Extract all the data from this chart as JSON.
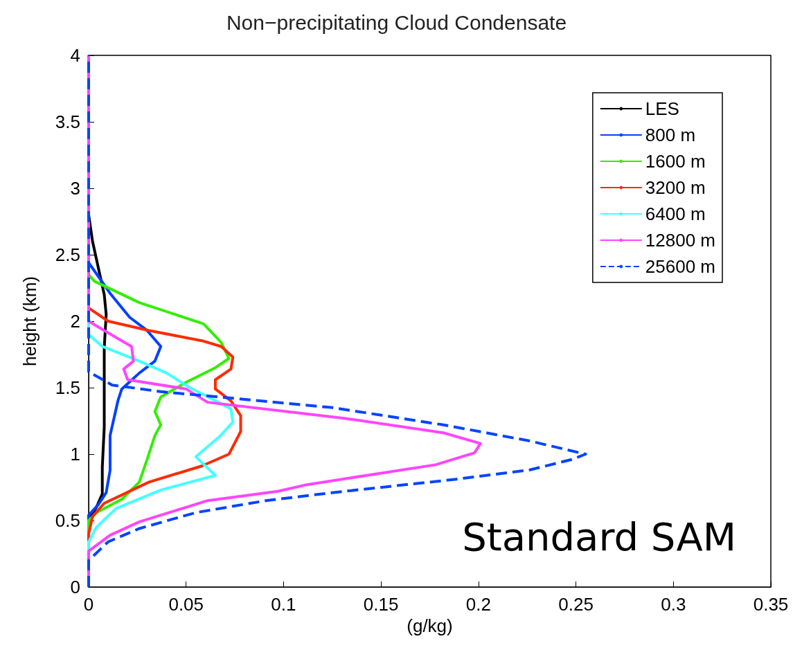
{
  "chart_data": {
    "type": "line",
    "title": "Non−precipitating Cloud Condensate",
    "xlabel": "(g/kg)",
    "ylabel": "height (km)",
    "xlim": [
      0,
      0.35
    ],
    "xticks": [
      0,
      0.05,
      0.1,
      0.15,
      0.2,
      0.25,
      0.3,
      0.35
    ],
    "ylim": [
      0,
      4
    ],
    "yticks": [
      0,
      0.5,
      1,
      1.5,
      2,
      2.5,
      3,
      3.5,
      4
    ],
    "grid": false,
    "legend": "top right",
    "marker": "none",
    "annotations": [
      "Standard SAM"
    ],
    "series": [
      {
        "name": "LES",
        "color": "#000000",
        "x": [
          0,
          0,
          0.004,
          0.007,
          0.007,
          0.008,
          0.008,
          0.008,
          0.009,
          0.008,
          0.005,
          0.002,
          0,
          0
        ],
        "values": [
          0,
          0.5,
          0.6,
          0.7,
          0.9,
          1.2,
          1.5,
          1.8,
          2.05,
          2.2,
          2.4,
          2.6,
          2.8,
          4
        ]
      },
      {
        "name": "800 m",
        "color": "#0040ff",
        "x": [
          0,
          0,
          0.005,
          0.009,
          0.011,
          0.011,
          0.015,
          0.017,
          0.026,
          0.034,
          0.037,
          0.03,
          0.021,
          0.011,
          0,
          0
        ],
        "values": [
          0,
          0.54,
          0.62,
          0.71,
          0.88,
          1.14,
          1.4,
          1.49,
          1.61,
          1.7,
          1.81,
          1.93,
          2.03,
          2.21,
          2.44,
          4
        ]
      },
      {
        "name": "1600 m",
        "color": "#33ee00",
        "x": [
          0,
          0,
          0.004,
          0.017,
          0.026,
          0.03,
          0.034,
          0.037,
          0.034,
          0.037,
          0.05,
          0.065,
          0.072,
          0.068,
          0.059,
          0.026,
          0.003,
          0,
          0
        ],
        "values": [
          0,
          0.5,
          0.56,
          0.66,
          0.79,
          0.96,
          1.14,
          1.22,
          1.32,
          1.43,
          1.54,
          1.65,
          1.72,
          1.84,
          1.98,
          2.14,
          2.3,
          2.35,
          4
        ]
      },
      {
        "name": "3200 m",
        "color": "#ff2a00",
        "x": [
          0,
          0,
          0.002,
          0.008,
          0.031,
          0.058,
          0.072,
          0.078,
          0.078,
          0.073,
          0.065,
          0.065,
          0.073,
          0.074,
          0.068,
          0.059,
          0.031,
          0.01,
          0,
          0
        ],
        "values": [
          0,
          0.4,
          0.53,
          0.63,
          0.79,
          0.91,
          1.0,
          1.17,
          1.29,
          1.4,
          1.49,
          1.56,
          1.64,
          1.73,
          1.81,
          1.85,
          1.93,
          2.0,
          2.1,
          4
        ]
      },
      {
        "name": "6400 m",
        "color": "#44ffff",
        "x": [
          0,
          0,
          0.004,
          0.014,
          0.037,
          0.065,
          0.055,
          0.067,
          0.074,
          0.073,
          0.064,
          0.052,
          0.04,
          0.026,
          0.007,
          0,
          0
        ],
        "values": [
          0,
          0.34,
          0.45,
          0.59,
          0.73,
          0.84,
          0.98,
          1.13,
          1.24,
          1.34,
          1.41,
          1.5,
          1.61,
          1.7,
          1.81,
          1.9,
          4
        ]
      },
      {
        "name": "12800 m",
        "color": "#ff44ff",
        "x": [
          0,
          0,
          0.011,
          0.026,
          0.05,
          0.061,
          0.097,
          0.112,
          0.178,
          0.198,
          0.201,
          0.182,
          0.131,
          0.061,
          0.05,
          0.02,
          0.018,
          0.023,
          0.022,
          0.008,
          0,
          0
        ],
        "values": [
          0,
          0.27,
          0.39,
          0.49,
          0.6,
          0.65,
          0.72,
          0.77,
          0.92,
          1.01,
          1.08,
          1.16,
          1.27,
          1.39,
          1.49,
          1.56,
          1.64,
          1.7,
          1.81,
          1.93,
          2.0,
          4
        ]
      },
      {
        "name": "25600 m",
        "color": "#0044ff",
        "line_style": "dashed",
        "x": [
          0,
          0,
          0.01,
          0.026,
          0.055,
          0.091,
          0.125,
          0.188,
          0.226,
          0.248,
          0.255,
          0.252,
          0.226,
          0.182,
          0.125,
          0.074,
          0.037,
          0.012,
          0,
          0
        ],
        "values": [
          0,
          0.2,
          0.34,
          0.44,
          0.56,
          0.65,
          0.71,
          0.81,
          0.88,
          0.96,
          1.0,
          1.01,
          1.1,
          1.22,
          1.35,
          1.42,
          1.47,
          1.52,
          1.62,
          4
        ]
      }
    ]
  }
}
